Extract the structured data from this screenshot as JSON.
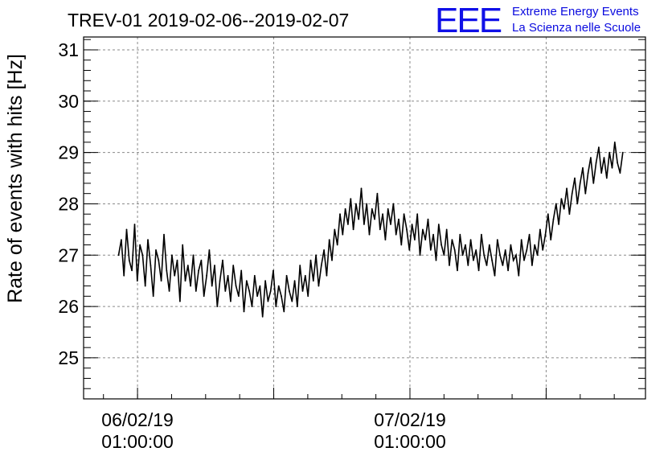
{
  "logo": {
    "mark": "EEE",
    "line1": "Extreme Energy Events",
    "line2": "La Scienza nelle Scuole",
    "color": "#1010e8"
  },
  "chart_data": {
    "type": "line",
    "title": "TREV-01 2019-02-06--2019-02-07",
    "xlabel": "",
    "ylabel": "Rate of events with hits [Hz]",
    "ylim": [
      24.2,
      31.25
    ],
    "xlim": [
      "2019-02-05T20:15:00",
      "2019-02-07T21:45:00"
    ],
    "grid": true,
    "line_color": "#000000",
    "y_ticks": [
      25,
      26,
      27,
      28,
      29,
      30,
      31
    ],
    "x_ticks": [
      {
        "x": "2019-02-06T01:00:00",
        "date_label": "06/02/19",
        "time_label": "01:00:00"
      },
      {
        "x": "2019-02-07T01:00:00",
        "date_label": "07/02/19",
        "time_label": "01:00:00"
      }
    ],
    "x_grid": [
      "2019-02-06T01:00:00",
      "2019-02-06T13:00:00",
      "2019-02-07T01:00:00",
      "2019-02-07T13:00:00"
    ],
    "series": [
      {
        "x_start": "2019-02-05T23:20:00",
        "x_end": "2019-02-07T19:45:00",
        "values": [
          27.0,
          27.3,
          26.6,
          27.5,
          26.9,
          26.7,
          27.6,
          26.5,
          27.2,
          27.0,
          26.4,
          27.3,
          26.8,
          26.2,
          27.1,
          26.9,
          26.5,
          27.4,
          26.7,
          26.3,
          27.0,
          26.6,
          26.9,
          26.1,
          27.2,
          26.5,
          26.8,
          26.4,
          27.0,
          26.3,
          26.7,
          26.9,
          26.2,
          26.6,
          27.1,
          26.4,
          26.8,
          26.0,
          26.5,
          26.9,
          26.3,
          26.6,
          26.1,
          26.8,
          26.4,
          26.2,
          26.7,
          25.9,
          26.5,
          26.3,
          26.0,
          26.6,
          26.2,
          26.4,
          25.8,
          26.5,
          26.1,
          26.3,
          26.7,
          26.0,
          26.4,
          26.2,
          25.9,
          26.6,
          26.3,
          26.1,
          26.5,
          26.0,
          26.8,
          26.3,
          26.6,
          26.2,
          26.9,
          26.5,
          27.0,
          26.4,
          26.8,
          27.1,
          26.6,
          27.3,
          26.9,
          27.5,
          27.2,
          27.8,
          27.4,
          27.9,
          27.6,
          28.1,
          27.5,
          28.0,
          27.7,
          28.3,
          27.6,
          28.0,
          27.4,
          27.9,
          27.7,
          28.2,
          27.5,
          27.8,
          27.3,
          27.9,
          27.6,
          28.0,
          27.4,
          27.7,
          27.2,
          27.8,
          27.5,
          27.1,
          27.6,
          27.3,
          27.8,
          27.0,
          27.5,
          27.3,
          27.7,
          27.1,
          27.4,
          26.9,
          27.6,
          27.2,
          27.0,
          27.5,
          26.8,
          27.3,
          27.1,
          26.7,
          27.4,
          27.0,
          27.2,
          26.8,
          27.3,
          26.9,
          27.1,
          26.7,
          27.4,
          27.0,
          26.8,
          27.2,
          26.9,
          26.6,
          27.3,
          27.0,
          26.8,
          27.1,
          26.7,
          27.2,
          26.9,
          27.0,
          26.6,
          27.3,
          26.9,
          27.1,
          27.4,
          26.8,
          27.2,
          27.0,
          27.5,
          27.1,
          27.4,
          27.8,
          27.3,
          27.7,
          28.0,
          27.6,
          28.1,
          27.9,
          28.3,
          27.8,
          28.2,
          28.5,
          28.0,
          28.4,
          28.7,
          28.2,
          28.6,
          28.9,
          28.4,
          28.8,
          29.1,
          28.6,
          28.9,
          28.5,
          29.0,
          28.7,
          29.2,
          28.8,
          28.6,
          29.0
        ]
      }
    ]
  }
}
